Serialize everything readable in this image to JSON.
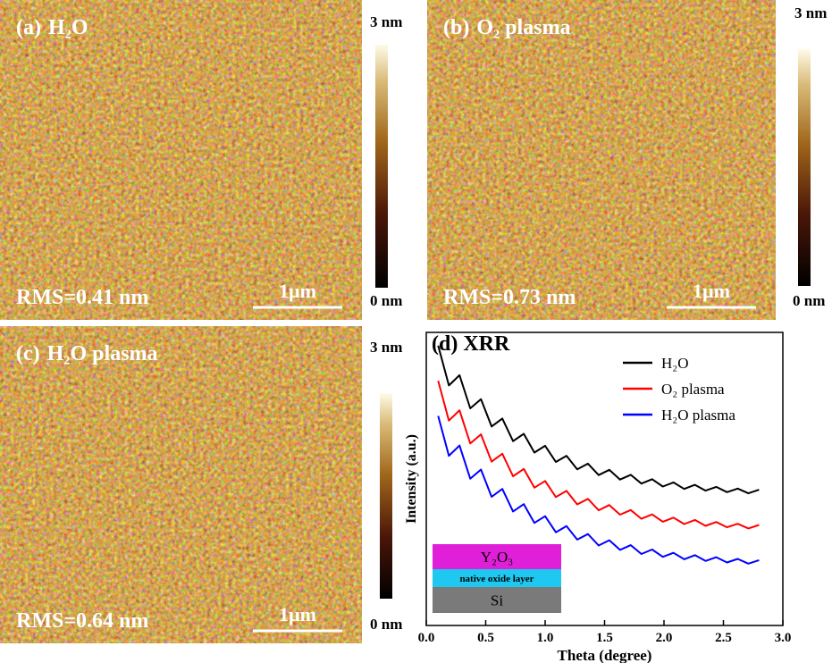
{
  "panels": [
    {
      "label": "(a)",
      "sample": "H₂O",
      "scale_max": "3 nm",
      "scale_min": "0 nm",
      "rms": "RMS=0.41 nm",
      "scale_bar": "1μm"
    },
    {
      "label": "(b)",
      "sample": "O₂ plasma",
      "scale_max": "3 nm",
      "scale_min": "0 nm",
      "rms": "RMS=0.73 nm",
      "scale_bar": "1μm"
    },
    {
      "label": "(c)",
      "sample": "H₂O plasma",
      "scale_max": "3 nm",
      "scale_min": "0 nm",
      "rms": "RMS=0.64 nm",
      "scale_bar": "1μm"
    }
  ],
  "chart_data": {
    "type": "line",
    "title": "(d) XRR",
    "xlabel": "Theta (degree)",
    "ylabel": "Intensity (a.u.)",
    "x": [
      0.1,
      0.19,
      0.28,
      0.37,
      0.46,
      0.55,
      0.64,
      0.73,
      0.82,
      0.91,
      1.0,
      1.09,
      1.18,
      1.27,
      1.36,
      1.45,
      1.54,
      1.63,
      1.72,
      1.81,
      1.9,
      1.99,
      2.08,
      2.17,
      2.26,
      2.35,
      2.44,
      2.53,
      2.62,
      2.71,
      2.8
    ],
    "series": [
      {
        "name": "H₂O",
        "color": "#000000",
        "values": [
          95.5,
          81.9,
          85.4,
          74.1,
          77.2,
          67.9,
          70.6,
          62.9,
          65.4,
          59.0,
          61.3,
          55.8,
          57.9,
          53.3,
          55.2,
          51.3,
          53.1,
          49.8,
          51.4,
          48.4,
          49.9,
          47.4,
          48.8,
          46.6,
          48.0,
          46.0,
          47.3,
          45.5,
          46.7,
          45.1,
          46.3
        ]
      },
      {
        "name": "O₂ plasma",
        "color": "#ff0000",
        "values": [
          83.5,
          69.9,
          73.4,
          62.1,
          65.2,
          55.9,
          58.6,
          50.9,
          53.4,
          47.0,
          49.3,
          43.8,
          45.9,
          41.3,
          43.2,
          39.3,
          41.1,
          37.8,
          39.4,
          36.4,
          37.9,
          35.4,
          36.8,
          34.6,
          36.0,
          34.0,
          35.3,
          33.5,
          34.7,
          33.1,
          34.3
        ]
      },
      {
        "name": "H₂O plasma",
        "color": "#0000ff",
        "values": [
          71.5,
          57.9,
          61.4,
          50.1,
          53.2,
          43.9,
          46.6,
          38.9,
          41.4,
          35.0,
          37.3,
          31.8,
          33.9,
          29.3,
          31.2,
          27.3,
          29.1,
          25.8,
          27.4,
          24.4,
          25.9,
          23.4,
          24.8,
          22.6,
          24.0,
          22.0,
          23.3,
          21.5,
          22.7,
          21.1,
          22.3
        ]
      }
    ],
    "xlim": [
      0,
      3
    ],
    "ylim": [
      0,
      100
    ],
    "xticks": [
      {
        "value": 0,
        "label": "0.0"
      },
      0.5,
      {
        "value": 1,
        "label": "1.0"
      },
      1.5,
      {
        "value": 2,
        "label": "2.0"
      },
      2.5,
      {
        "value": 3,
        "label": "3.0"
      }
    ],
    "inset": [
      "Y₂O₃",
      "native oxide layer",
      "Si"
    ]
  }
}
